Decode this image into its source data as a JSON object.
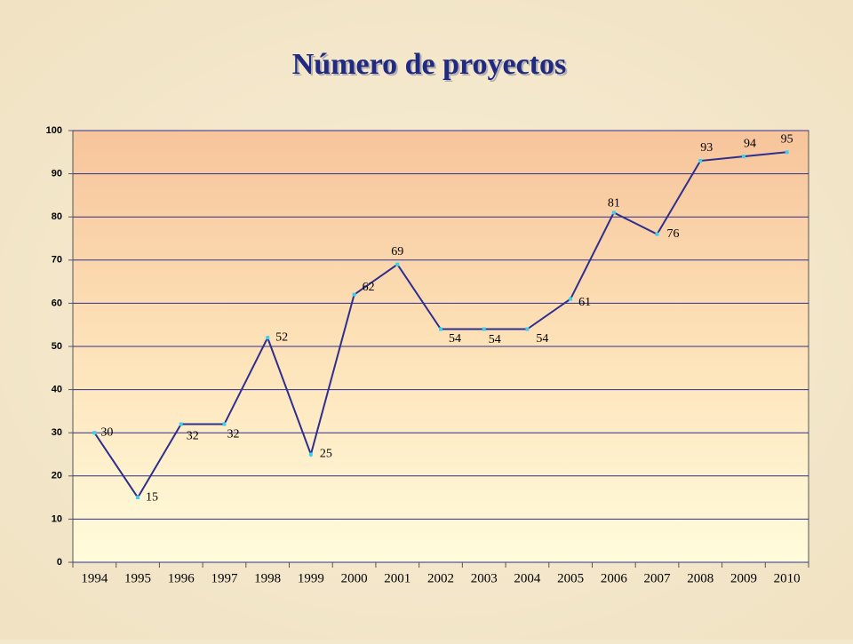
{
  "chart_data": {
    "type": "line",
    "title": "Número de proyectos",
    "categories": [
      "1994",
      "1995",
      "1996",
      "1997",
      "1998",
      "1999",
      "2000",
      "2001",
      "2002",
      "2003",
      "2004",
      "2005",
      "2006",
      "2007",
      "2008",
      "2009",
      "2010"
    ],
    "values": [
      30,
      15,
      32,
      32,
      52,
      25,
      62,
      69,
      54,
      54,
      54,
      61,
      81,
      76,
      93,
      94,
      95
    ],
    "color": "#2e2e8f",
    "marker_color": "#3ad0f0",
    "ylim": [
      0,
      100
    ],
    "yticks": [
      0,
      10,
      20,
      30,
      40,
      50,
      60,
      70,
      80,
      90,
      100
    ],
    "grid": true
  }
}
